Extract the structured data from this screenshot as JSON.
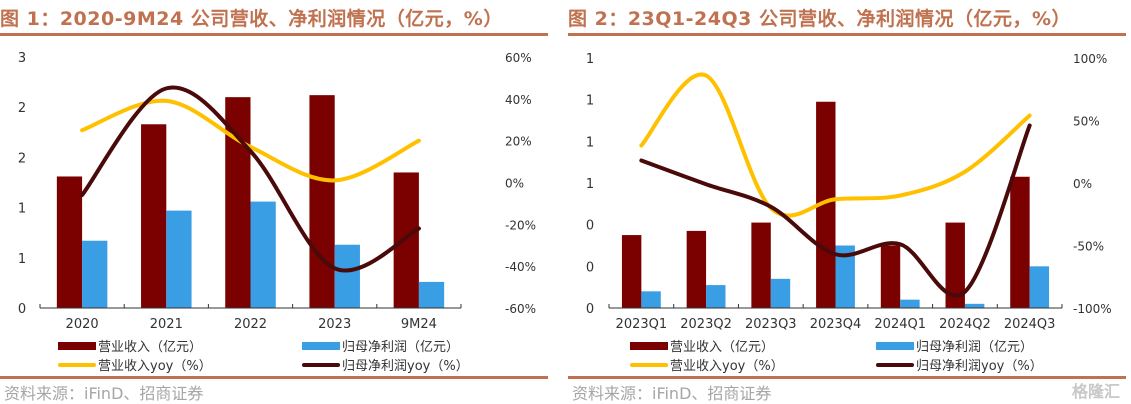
{
  "colors": {
    "accent": "#c0714f",
    "revenue_bar": "#7b0000",
    "profit_bar": "#3a9ee4",
    "revenue_yoy_line": "#ffc000",
    "profit_yoy_line": "#4a0a0a",
    "source_text": "#a6a6a6"
  },
  "source_text": "资料来源：iFinD、招商证券",
  "watermark": "格隆汇",
  "chart_data": [
    {
      "type": "bar",
      "title": "图 1：2020-9M24 公司营收、净利润情况（亿元，%）",
      "categories": [
        "2020",
        "2021",
        "2022",
        "2023",
        "9M24"
      ],
      "y_left": {
        "ticks": [
          0,
          0.5,
          1,
          1.5,
          2,
          2.5
        ],
        "tick_labels": [
          "0",
          "1",
          "1",
          "2",
          "2",
          "3"
        ],
        "range": [
          0,
          2.5
        ]
      },
      "y_right": {
        "ticks": [
          -60,
          -40,
          -20,
          0,
          20,
          40,
          60
        ],
        "tick_labels": [
          "-60%",
          "-40%",
          "-20%",
          "0%",
          "20%",
          "40%",
          "60%"
        ],
        "range": [
          -60,
          60
        ]
      },
      "series": [
        {
          "name": "营业收入（亿元）",
          "kind": "bar",
          "axis": "left",
          "values": [
            1.31,
            1.83,
            2.1,
            2.12,
            1.35
          ]
        },
        {
          "name": "归母净利润（亿元）",
          "kind": "bar",
          "axis": "left",
          "values": [
            0.67,
            0.97,
            1.06,
            0.63,
            0.26
          ]
        },
        {
          "name": "营业收入yoy（%）",
          "kind": "line",
          "axis": "right",
          "values": [
            25,
            39,
            17,
            1,
            20
          ]
        },
        {
          "name": "归母净利润yoy（%）",
          "kind": "line",
          "axis": "right",
          "values": [
            -6,
            45,
            15,
            -41,
            -22
          ]
        }
      ],
      "legend_position": "bottom",
      "grid": false
    },
    {
      "type": "bar",
      "title": "图 2：23Q1-24Q3 公司营收、净利润情况（亿元，%）",
      "categories": [
        "2023Q1",
        "2023Q2",
        "2023Q3",
        "2023Q4",
        "2024Q1",
        "2024Q2",
        "2024Q3"
      ],
      "y_left": {
        "ticks": [
          0,
          0.2,
          0.4,
          0.6,
          0.8,
          1.0,
          1.2
        ],
        "tick_labels": [
          "0",
          "0",
          "0",
          "1",
          "1",
          "1",
          "1"
        ],
        "range": [
          0,
          1.2
        ]
      },
      "y_right": {
        "ticks": [
          -100,
          -50,
          0,
          50,
          100
        ],
        "tick_labels": [
          "-100%",
          "-50%",
          "0%",
          "50%",
          "100%"
        ],
        "range": [
          -100,
          100
        ]
      },
      "series": [
        {
          "name": "营业收入（亿元）",
          "kind": "bar",
          "axis": "left",
          "values": [
            0.35,
            0.37,
            0.41,
            0.99,
            0.3,
            0.41,
            0.63
          ]
        },
        {
          "name": "归母净利润（亿元）",
          "kind": "bar",
          "axis": "left",
          "values": [
            0.08,
            0.11,
            0.14,
            0.3,
            0.04,
            0.02,
            0.2
          ]
        },
        {
          "name": "营业收入yoy（%）",
          "kind": "line",
          "axis": "right",
          "values": [
            30,
            86,
            -20,
            -13,
            -10,
            9,
            54
          ]
        },
        {
          "name": "归母净利润yoy（%）",
          "kind": "line",
          "axis": "right",
          "values": [
            18,
            -1,
            -19,
            -57,
            -49,
            -87,
            46
          ]
        }
      ],
      "legend_position": "bottom",
      "grid": false
    }
  ]
}
